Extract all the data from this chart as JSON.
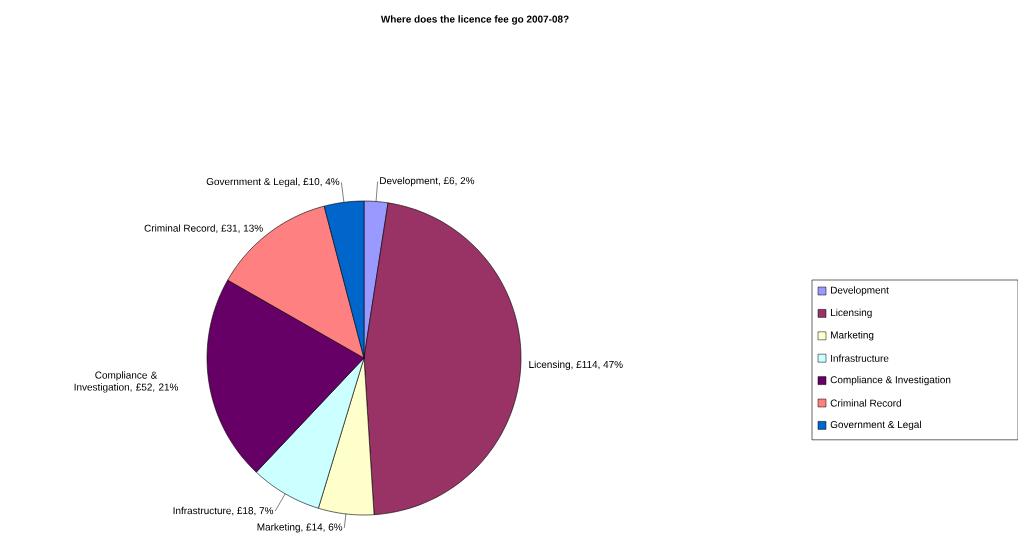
{
  "chart_data": {
    "type": "pie",
    "title": "Where does the licence fee go 2007-08?",
    "categories": [
      "Development",
      "Licensing",
      "Marketing",
      "Infrastructure",
      "Compliance & Investigation",
      "Criminal Record",
      "Government & Legal"
    ],
    "values": [
      6,
      114,
      14,
      18,
      52,
      31,
      10
    ],
    "value_labels": [
      "Development, £6, 2%",
      "Licensing, £114, 47%",
      "Marketing, £14, 6%",
      "Infrastructure, £18, 7%",
      "Compliance & Investigation, £52, 21%",
      "Criminal Record, £31, 13%",
      "Government & Legal, £10, 4%"
    ],
    "colors": [
      "#9999ff",
      "#993366",
      "#ffffcc",
      "#ccffff",
      "#660066",
      "#ff8080",
      "#0066cc"
    ],
    "legend": "right"
  }
}
